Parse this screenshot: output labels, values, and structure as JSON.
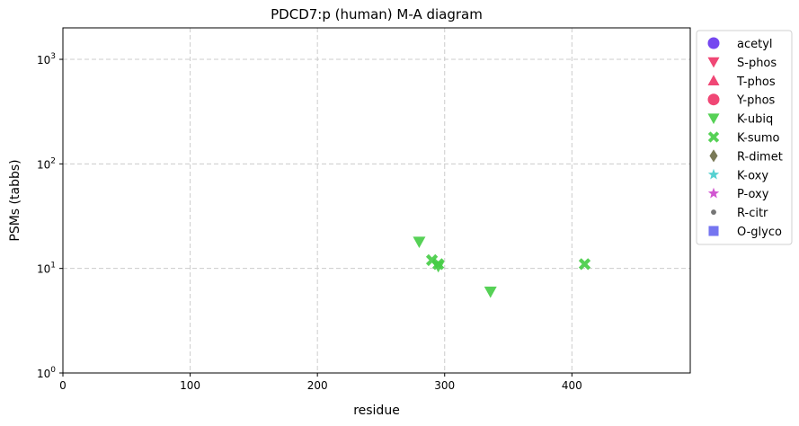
{
  "chart_data": {
    "type": "scatter",
    "title": "PDCD7:p (human) M-A diagram",
    "xlabel": "residue",
    "ylabel": "PSMs (tabbs)",
    "xlim": [
      0,
      493
    ],
    "ylim": [
      1,
      2000
    ],
    "yscale": "log",
    "grid": true,
    "legend_position": "outside-right",
    "x_ticks": [
      {
        "value": 0,
        "label": "0"
      },
      {
        "value": 100,
        "label": "100"
      },
      {
        "value": 200,
        "label": "200"
      },
      {
        "value": 300,
        "label": "300"
      },
      {
        "value": 400,
        "label": "400"
      }
    ],
    "y_ticks": [
      {
        "value": 1,
        "base": "10",
        "exp": "0"
      },
      {
        "value": 10,
        "base": "10",
        "exp": "1"
      },
      {
        "value": 100,
        "base": "10",
        "exp": "2"
      },
      {
        "value": 1000,
        "base": "10",
        "exp": "3"
      }
    ],
    "series": [
      {
        "name": "acetyl",
        "marker": "circle",
        "color": "#6633ee",
        "points": []
      },
      {
        "name": "S-phos",
        "marker": "triangle-down",
        "color": "#ee3366",
        "points": []
      },
      {
        "name": "T-phos",
        "marker": "triangle-up",
        "color": "#ee3366",
        "points": []
      },
      {
        "name": "Y-phos",
        "marker": "circle",
        "color": "#ee3366",
        "points": []
      },
      {
        "name": "K-ubiq",
        "marker": "triangle-down",
        "color": "#44cc44",
        "points": [
          {
            "x": 280,
            "y": 18
          },
          {
            "x": 295,
            "y": 10.5
          },
          {
            "x": 336,
            "y": 6
          }
        ]
      },
      {
        "name": "K-sumo",
        "marker": "x",
        "color": "#44cc44",
        "points": [
          {
            "x": 290,
            "y": 12
          },
          {
            "x": 295,
            "y": 11
          },
          {
            "x": 410,
            "y": 11
          }
        ]
      },
      {
        "name": "R-dimet",
        "marker": "diamond",
        "color": "#6b6b45",
        "points": []
      },
      {
        "name": "K-oxy",
        "marker": "star",
        "color": "#44cccc",
        "points": []
      },
      {
        "name": "P-oxy",
        "marker": "star",
        "color": "#cc44cc",
        "points": []
      },
      {
        "name": "R-citr",
        "marker": "dot",
        "color": "#666666",
        "points": []
      },
      {
        "name": "O-glyco",
        "marker": "square",
        "color": "#6666ee",
        "points": []
      }
    ]
  }
}
